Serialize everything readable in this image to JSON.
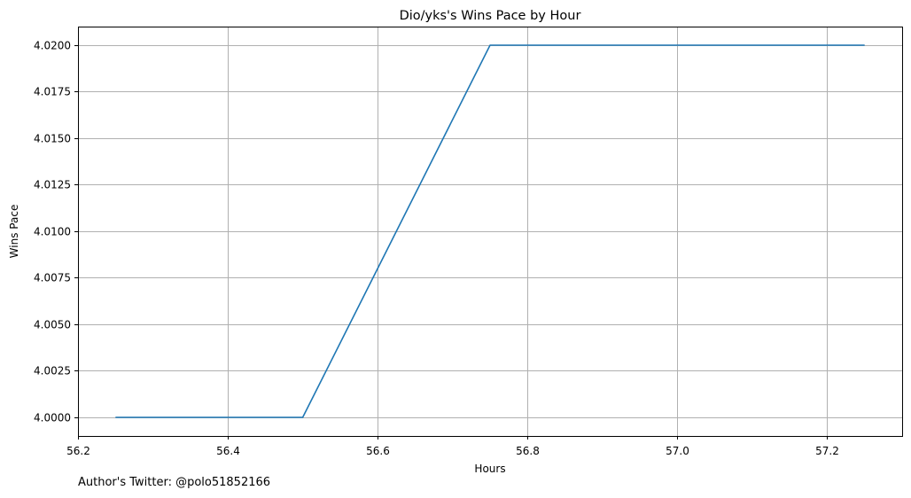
{
  "chart_data": {
    "type": "line",
    "title": "Dio/yks's Wins Pace by Hour",
    "xlabel": "Hours",
    "ylabel": "Wins Pace",
    "xlim": [
      56.2,
      57.3
    ],
    "ylim": [
      3.999,
      4.021
    ],
    "grid": true,
    "line_color": "#1f77b4",
    "x_ticks": [
      "56.2",
      "56.4",
      "56.6",
      "56.8",
      "57.0",
      "57.2"
    ],
    "y_ticks": [
      "4.0000",
      "4.0025",
      "4.0050",
      "4.0075",
      "4.0100",
      "4.0125",
      "4.0150",
      "4.0175",
      "4.0200"
    ],
    "series": [
      {
        "x": [
          56.25,
          56.5,
          56.75,
          57.0,
          57.25
        ],
        "y": [
          4.0,
          4.0,
          4.02,
          4.02,
          4.02
        ]
      }
    ]
  },
  "footer": "Author's Twitter: @polo51852166"
}
